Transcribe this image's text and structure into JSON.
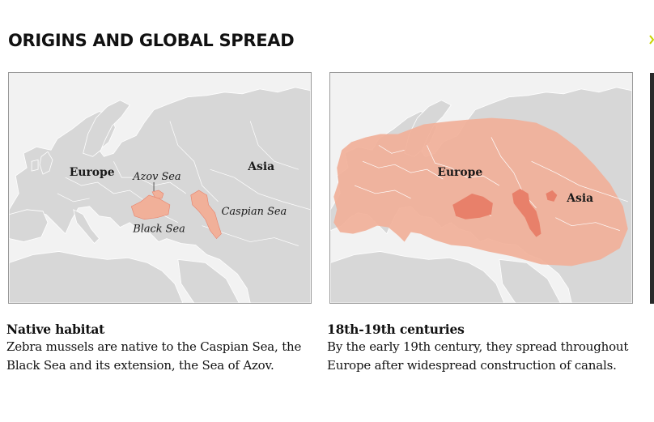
{
  "title": "ORIGINS AND GLOBAL SPREAD",
  "colors": {
    "sea": "#f2f2f2",
    "land": "#d7d7d7",
    "border": "#ffffff",
    "habitat": "#f1b099",
    "habitat_dark": "#e8806a"
  },
  "panels": [
    {
      "heading": "Native habitat",
      "text": "Zebra mussels are native to the Caspian Sea, the Black Sea and its extension, the Sea of Azov.",
      "labels": {
        "europe": "Europe",
        "asia": "Asia",
        "azov": "Azov Sea",
        "caspian": "Caspian Sea",
        "black": "Black Sea"
      }
    },
    {
      "heading": "18th-19th centuries",
      "text": "By the early 19th century, they spread throughout Europe after widespread construction of canals.",
      "labels": {
        "europe": "Europe",
        "asia": "Asia"
      }
    }
  ]
}
